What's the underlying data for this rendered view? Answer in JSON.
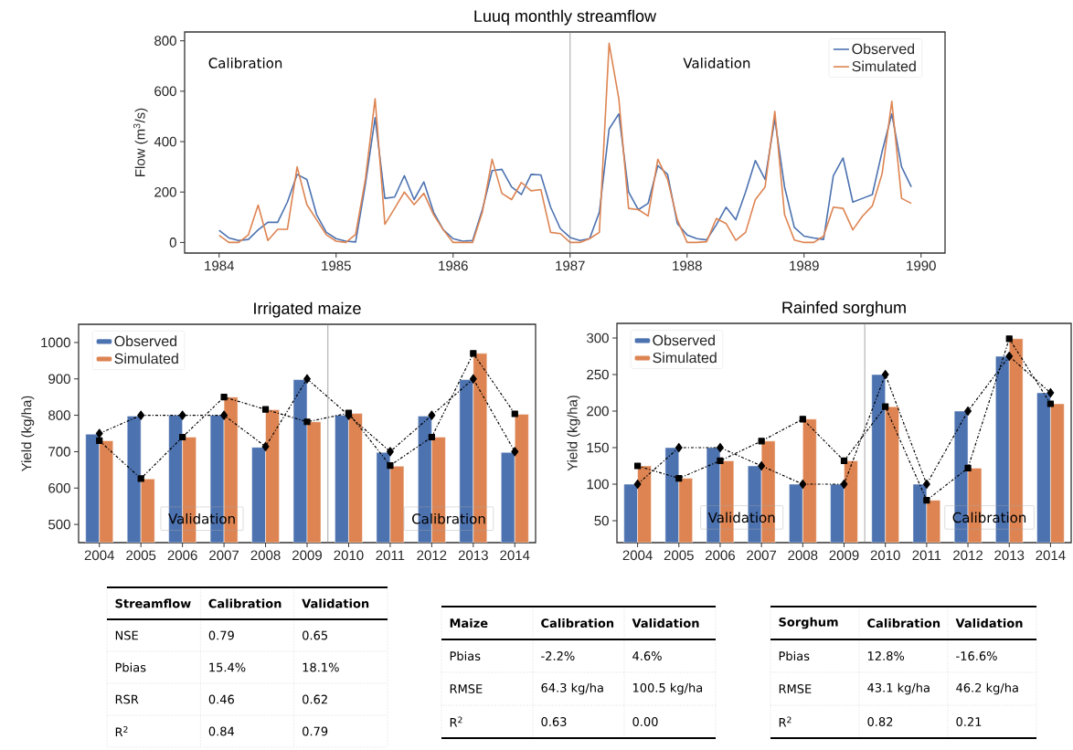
{
  "chart_data": [
    {
      "type": "line",
      "title": "Luuq monthly streamflow",
      "ylabel": "Flow (m$^{3}$/s)",
      "x": [
        "1984-01",
        "1984-02",
        "1984-03",
        "1984-04",
        "1984-05",
        "1984-06",
        "1984-07",
        "1984-08",
        "1984-09",
        "1984-10",
        "1984-11",
        "1984-12",
        "1985-01",
        "1985-02",
        "1985-03",
        "1985-04",
        "1985-05",
        "1985-06",
        "1985-07",
        "1985-08",
        "1985-09",
        "1985-10",
        "1985-11",
        "1985-12",
        "1986-01",
        "1986-02",
        "1986-03",
        "1986-04",
        "1986-05",
        "1986-06",
        "1986-07",
        "1986-08",
        "1986-09",
        "1986-10",
        "1986-11",
        "1986-12",
        "1987-01",
        "1987-02",
        "1987-03",
        "1987-04",
        "1987-05",
        "1987-06",
        "1987-07",
        "1987-08",
        "1987-09",
        "1987-10",
        "1987-11",
        "1987-12",
        "1988-01",
        "1988-02",
        "1988-03",
        "1988-04",
        "1988-05",
        "1988-06",
        "1988-07",
        "1988-08",
        "1988-09",
        "1988-10",
        "1988-11",
        "1988-12",
        "1989-01",
        "1989-02",
        "1989-03",
        "1989-04",
        "1989-05",
        "1989-06",
        "1989-07",
        "1989-08",
        "1989-09",
        "1989-10",
        "1989-11",
        "1989-12"
      ],
      "series": [
        {
          "name": "Observed",
          "color": "#4c72b0",
          "values": [
            48,
            18,
            8,
            12,
            50,
            80,
            80,
            160,
            270,
            250,
            110,
            40,
            15,
            5,
            2,
            230,
            495,
            175,
            180,
            265,
            170,
            240,
            120,
            50,
            15,
            5,
            8,
            130,
            285,
            290,
            220,
            190,
            270,
            268,
            140,
            55,
            20,
            8,
            15,
            120,
            450,
            510,
            200,
            130,
            155,
            305,
            270,
            75,
            30,
            15,
            10,
            70,
            140,
            90,
            200,
            325,
            250,
            490,
            220,
            60,
            25,
            18,
            12,
            265,
            335,
            160,
            175,
            190,
            360,
            510,
            300,
            220
          ]
        },
        {
          "name": "Simulated",
          "color": "#dd8452",
          "values": [
            28,
            0,
            0,
            30,
            148,
            8,
            52,
            52,
            300,
            150,
            90,
            30,
            5,
            0,
            32,
            250,
            570,
            72,
            135,
            200,
            150,
            195,
            110,
            50,
            0,
            0,
            0,
            120,
            330,
            195,
            170,
            238,
            205,
            210,
            40,
            35,
            0,
            0,
            15,
            40,
            790,
            570,
            135,
            130,
            105,
            330,
            250,
            90,
            0,
            0,
            3,
            95,
            75,
            8,
            40,
            170,
            220,
            520,
            110,
            10,
            0,
            0,
            25,
            140,
            135,
            50,
            105,
            145,
            272,
            560,
            175,
            155
          ]
        }
      ],
      "xlim": [
        "1983-09-15",
        "1990-03-15"
      ],
      "xticks": [
        {
          "value": "1984-01",
          "label": "1984"
        },
        {
          "value": "1985-01",
          "label": "1985"
        },
        {
          "value": "1986-01",
          "label": "1986"
        },
        {
          "value": "1987-01",
          "label": "1987"
        },
        {
          "value": "1988-01",
          "label": "1988"
        },
        {
          "value": "1989-01",
          "label": "1989"
        },
        {
          "value": "1990-01",
          "label": "1990"
        }
      ],
      "ylim": [
        -42,
        835
      ],
      "yticks": [
        0,
        200,
        400,
        600,
        800
      ],
      "ref_lines": [
        {
          "axis": "x",
          "value": "1987-01",
          "color": "#808080"
        }
      ],
      "annotations": [
        "Calibration",
        "Validation"
      ],
      "legend": "top right",
      "grid": false
    },
    {
      "type": "bar",
      "title": "Irrigated maize",
      "ylabel": "Yield (kg/ha)",
      "categories": [
        "2004",
        "2005",
        "2006",
        "2007",
        "2008",
        "2009",
        "2010",
        "2011",
        "2012",
        "2013",
        "2014"
      ],
      "series": [
        {
          "name": "Observed",
          "color": "#4c72b0",
          "values": [
            748,
            798,
            800,
            800,
            712,
            898,
            800,
            698,
            798,
            898,
            698
          ]
        },
        {
          "name": "Simulated",
          "color": "#dd8452",
          "values": [
            730,
            625,
            740,
            850,
            815,
            782,
            805,
            660,
            740,
            970,
            803
          ]
        },
        {
          "type": "line",
          "color": "#000000",
          "marker": "diamond",
          "line_style": "dashdot",
          "values": [
            750,
            800,
            800,
            800,
            714,
            900,
            800,
            700,
            800,
            900,
            700
          ]
        },
        {
          "type": "line",
          "color": "#000000",
          "marker": "square",
          "line_style": "dashdot",
          "values": [
            730,
            626,
            740,
            850,
            816,
            782,
            806,
            662,
            740,
            970,
            804
          ]
        }
      ],
      "ylim": [
        450,
        1050
      ],
      "yticks": [
        500,
        600,
        700,
        800,
        900,
        1000
      ],
      "annotations": [
        "Validation",
        "Calibration"
      ],
      "legend": "top left",
      "grid": false
    },
    {
      "type": "bar",
      "title": "Rainfed sorghum",
      "ylabel": "Yield (kg/ha)",
      "categories": [
        "2004",
        "2005",
        "2006",
        "2007",
        "2008",
        "2009",
        "2010",
        "2011",
        "2012",
        "2013",
        "2014"
      ],
      "series": [
        {
          "name": "Observed",
          "color": "#4c72b0",
          "values": [
            100,
            150,
            150,
            125,
            100,
            100,
            250,
            100,
            200,
            275,
            225
          ]
        },
        {
          "name": "Simulated",
          "color": "#dd8452",
          "values": [
            125,
            108,
            132,
            159,
            189,
            132,
            206,
            78,
            122,
            299,
            210
          ]
        },
        {
          "type": "line",
          "color": "#000000",
          "marker": "diamond",
          "line_style": "dashdot",
          "values": [
            100,
            150,
            150,
            125,
            100,
            100,
            250,
            100,
            200,
            275,
            225
          ]
        },
        {
          "type": "line",
          "color": "#000000",
          "marker": "square",
          "line_style": "dashdot",
          "values": [
            125,
            108,
            132,
            159,
            189,
            132,
            206,
            78,
            122,
            299,
            210
          ]
        }
      ],
      "ylim": [
        20,
        320
      ],
      "yticks": [
        50,
        100,
        150,
        200,
        250,
        300
      ],
      "annotations": [
        "Validation",
        "Calibration"
      ],
      "legend": "top left",
      "grid": false
    },
    {
      "type": "other",
      "title": "Streamflow",
      "categories": [
        "Calibration",
        "Validation"
      ],
      "y_categories": [
        "NSE",
        "Pbias",
        "RSR",
        "R$^{2}$"
      ],
      "cell_labels": [
        [
          "0.79",
          "0.65"
        ],
        [
          "15.4%",
          "18.1%"
        ],
        [
          "0.46",
          "0.62"
        ],
        [
          "0.84",
          "0.79"
        ]
      ]
    },
    {
      "type": "other",
      "title": "Maize",
      "categories": [
        "Calibration",
        "Validation"
      ],
      "y_categories": [
        "Pbias",
        "RMSE",
        "R$^{2}$"
      ],
      "cell_labels": [
        [
          "-2.2%",
          "4.6%"
        ],
        [
          "64.3 kg/ha",
          "100.5 kg/ha"
        ],
        [
          "0.63",
          "0.00"
        ]
      ]
    },
    {
      "type": "other",
      "title": "Sorghum",
      "categories": [
        "Calibration",
        "Validation"
      ],
      "y_categories": [
        "Pbias",
        "RMSE",
        "R$^{2}$"
      ],
      "cell_labels": [
        [
          "12.8%",
          "-16.6%"
        ],
        [
          "43.1 kg/ha",
          "46.2 kg/ha"
        ],
        [
          "0.82",
          "0.21"
        ]
      ]
    }
  ]
}
